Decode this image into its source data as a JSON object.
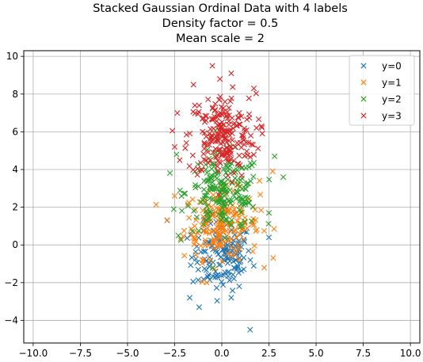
{
  "chart_data": {
    "type": "scatter",
    "title": [
      "Stacked Gaussian Ordinal Data with 4 labels",
      "Density factor = 0.5",
      "Mean scale = 2"
    ],
    "xlabel": "",
    "ylabel": "",
    "xlim": [
      -10.5,
      10.5
    ],
    "ylim": [
      -5.2,
      10.3
    ],
    "xticks": [
      -10.0,
      -7.5,
      -5.0,
      -2.5,
      0.0,
      2.5,
      5.0,
      7.5,
      10.0
    ],
    "xtick_labels": [
      "−10.0",
      "−7.5",
      "−5.0",
      "−2.5",
      "0.0",
      "2.5",
      "5.0",
      "7.5",
      "10.0"
    ],
    "yticks": [
      -4,
      -2,
      0,
      2,
      4,
      6,
      8,
      10
    ],
    "ytick_labels": [
      "−4",
      "−2",
      "0",
      "2",
      "4",
      "6",
      "8",
      "10"
    ],
    "grid": true,
    "marker": "x",
    "legend_position": "top-right",
    "series": [
      {
        "name": "y=0",
        "color": "#1f77b4",
        "center": [
          0.0,
          -0.6
        ],
        "spread": [
          0.8,
          0.9
        ],
        "n": 150,
        "outliers": [
          [
            1.5,
            -4.5
          ],
          [
            -1.2,
            -3.3
          ],
          [
            -1.7,
            -2.8
          ],
          [
            0.5,
            -2.8
          ],
          [
            -2.9,
            1.3
          ],
          [
            2.5,
            0.4
          ]
        ]
      },
      {
        "name": "y=1",
        "color": "#ff7f0e",
        "center": [
          0.0,
          1.1
        ],
        "spread": [
          1.0,
          0.9
        ],
        "n": 200,
        "outliers": [
          [
            -2.5,
            2.6
          ],
          [
            2.7,
            3.9
          ],
          [
            -0.8,
            -2.0
          ],
          [
            2.0,
            3.4
          ]
        ]
      },
      {
        "name": "y=2",
        "color": "#2ca02c",
        "center": [
          0.1,
          2.8
        ],
        "spread": [
          1.0,
          1.0
        ],
        "n": 200,
        "outliers": [
          [
            -2.4,
            4.8
          ],
          [
            2.8,
            4.7
          ],
          [
            -2.3,
            0.5
          ],
          [
            2.5,
            1.7
          ]
        ]
      },
      {
        "name": "y=3",
        "color": "#d62728",
        "center": [
          0.0,
          5.8
        ],
        "spread": [
          0.9,
          1.1
        ],
        "n": 220,
        "outliers": [
          [
            -0.5,
            9.5
          ],
          [
            -0.1,
            8.8
          ],
          [
            0.5,
            9.1
          ],
          [
            -1.5,
            8.5
          ],
          [
            1.7,
            8.3
          ],
          [
            -2.5,
            5.2
          ]
        ]
      }
    ]
  }
}
